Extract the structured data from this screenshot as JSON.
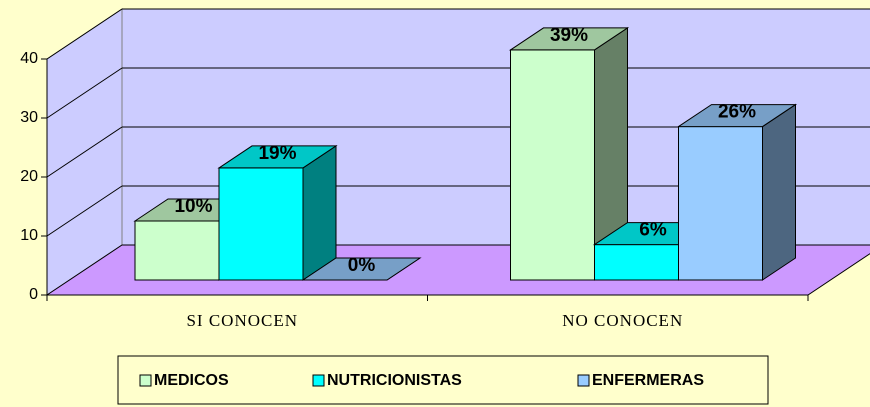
{
  "chart_data": {
    "type": "bar3d",
    "categories": [
      "SI CONOCEN",
      "NO CONOCEN"
    ],
    "series": [
      {
        "name": "MEDICOS",
        "color": "#ccffcc",
        "values": [
          10,
          39
        ],
        "value_labels": [
          "10%",
          "39%"
        ]
      },
      {
        "name": "NUTRICIONISTAS",
        "color": "#00ffff",
        "values": [
          19,
          6
        ],
        "value_labels": [
          "19%",
          "6%"
        ]
      },
      {
        "name": "ENFERMERAS",
        "color": "#99ccff",
        "values": [
          0,
          26
        ],
        "value_labels": [
          "0%",
          "26%"
        ]
      }
    ],
    "ylim": [
      0,
      40
    ],
    "yticks": [
      0,
      10,
      20,
      30,
      40
    ],
    "grid": true,
    "wall_color": "#ccccff",
    "floor_color": "#cc99ff",
    "background": "#ffffcc",
    "legend": "bottom"
  }
}
